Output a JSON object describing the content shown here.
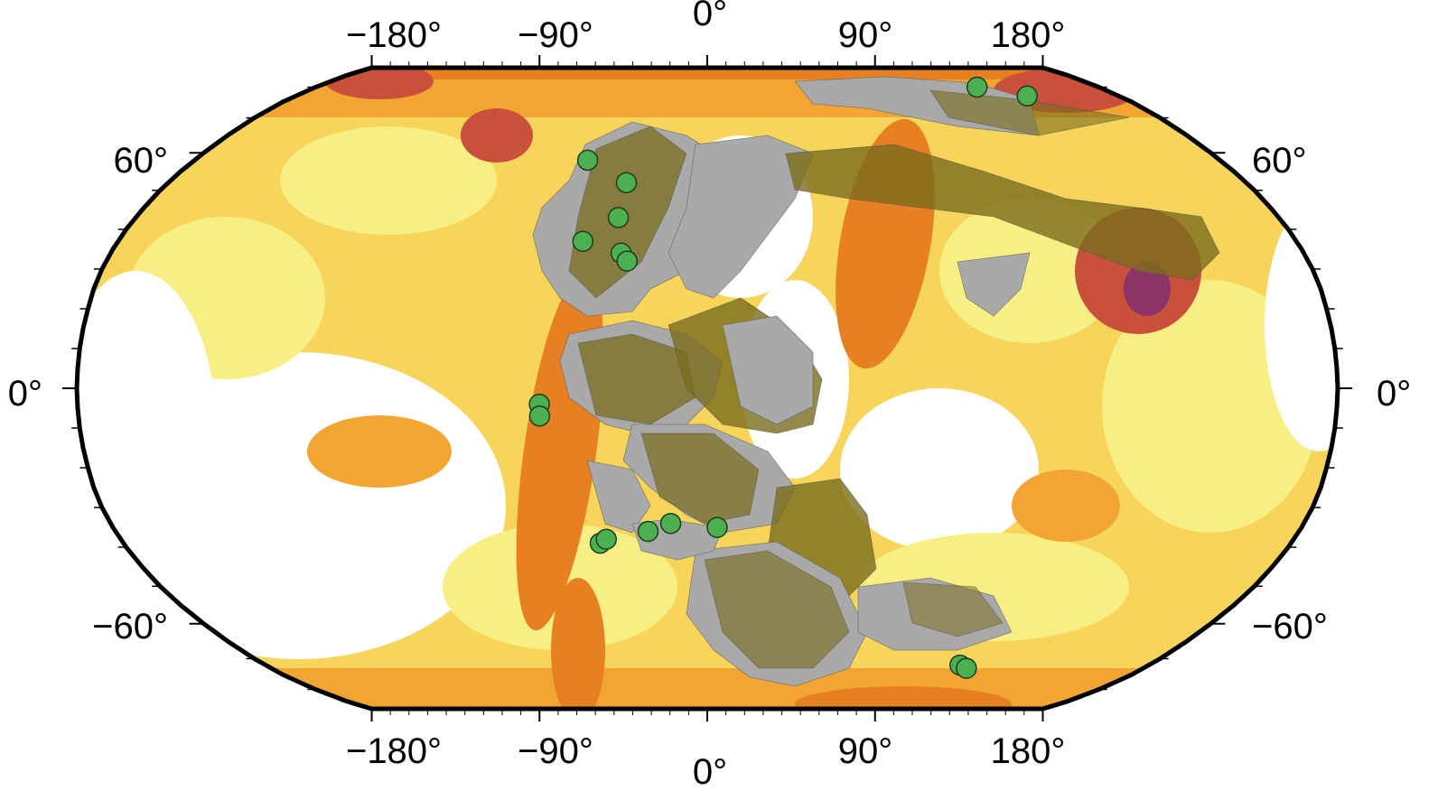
{
  "map": {
    "projection": "Robinson",
    "colors": {
      "ocean_white": "#ffffff",
      "pale_yellow": "#f7ef84",
      "yellow": "#f6d55a",
      "orange": "#f2a533",
      "dark_orange": "#e77f23",
      "red": "#c9513c",
      "magenta": "#8d3468",
      "continent_gray": "#a9a9a9",
      "continent_olive": "#7b6d1c",
      "frame": "#000000",
      "marker_fill": "#4caf50",
      "marker_stroke": "#1b3d1b"
    },
    "longitude_labels": {
      "top": [
        "−180°",
        "−90°",
        "0°",
        "90°",
        "180°"
      ],
      "bottom": [
        "−180°",
        "−90°",
        "0°",
        "90°",
        "180°"
      ],
      "values": [
        -180,
        -90,
        0,
        90,
        180
      ]
    },
    "latitude_labels": {
      "left": [
        "60°",
        "0°",
        "−60°"
      ],
      "right": [
        "60°",
        "0°",
        "−60°"
      ],
      "values": [
        60,
        0,
        -60
      ]
    },
    "sample_sites": [
      {
        "lon": -42,
        "lat": 58
      },
      {
        "lon": -27,
        "lat": 52
      },
      {
        "lon": -28,
        "lat": 43
      },
      {
        "lon": -38,
        "lat": 37
      },
      {
        "lon": -26,
        "lat": 34
      },
      {
        "lon": -24,
        "lat": 32
      },
      {
        "lon": -48,
        "lat": -4
      },
      {
        "lon": -48,
        "lat": -7
      },
      {
        "lon": -33,
        "lat": -39
      },
      {
        "lon": -31,
        "lat": -38
      },
      {
        "lon": -18,
        "lat": -36
      },
      {
        "lon": -11,
        "lat": -34
      },
      {
        "lon": 3,
        "lat": -35
      },
      {
        "lon": 103,
        "lat": -72
      },
      {
        "lon": 107,
        "lat": -73
      },
      {
        "lon": 124,
        "lat": 80
      },
      {
        "lon": 140,
        "lat": 77
      }
    ]
  }
}
